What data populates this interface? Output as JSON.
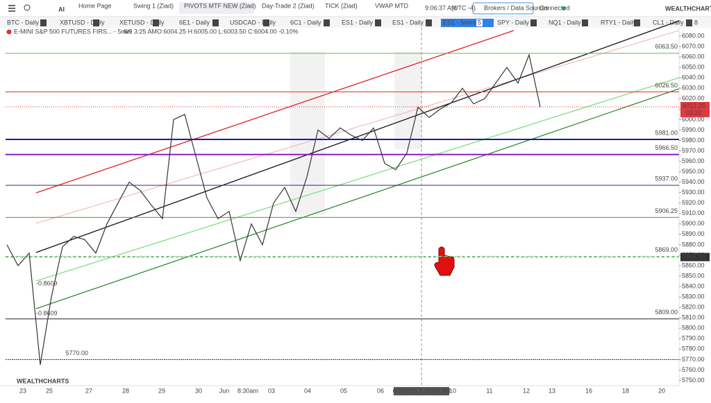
{
  "topbar": {
    "ai": "AI",
    "tabs": [
      "Home Page",
      "Swing 1 (Ziad)",
      "PIVOTS MTF NEW (Ziad)",
      "Day-Trade 2 (Ziad)",
      "TICK (Ziad)",
      "VWAP MTD"
    ],
    "time": "9:06:37 AM",
    "timezone": "(UTC -4)",
    "brokers_button": "Brokers / Data Sources",
    "status": "Connected",
    "logo": "WEALTHCHARTS"
  },
  "watchlist": {
    "items": [
      "BTC - Daily",
      "XBTUSD - Daily",
      "XETUSD - Daily",
      "6E1 - Daily",
      "USDCAD - Daily",
      "6C1 - Daily",
      "ES1 - Daily",
      "ES1 - Daily",
      "ES1 - 5mins",
      "SPY - Daily",
      "NQ1 - Daily",
      "RTY1 - Daily",
      "CL1 - Daily"
    ],
    "badge": "5",
    "count": "8"
  },
  "chart_data": {
    "type": "line",
    "title": "E-MINI S&P 500 FUTURES FIRS... - 5min",
    "bar_time": "6/9 3:25 AM",
    "ohlc": "O:6004.25 H:6005.00 L:6003.50 C:6004.00 -0.10%",
    "values": [
      5880,
      5860,
      5872,
      5765,
      5830,
      5878,
      5888,
      5885,
      5872,
      5900,
      5920,
      5940,
      5932,
      5918,
      5905,
      6000,
      6005,
      5965,
      5925,
      5905,
      5912,
      5865,
      5900,
      5880,
      5920,
      5935,
      5912,
      5945,
      5990,
      5982,
      5992,
      5985,
      5980,
      5992,
      5958,
      5952,
      5968,
      6012,
      6002,
      6010,
      6016,
      6030,
      6015,
      6020,
      6035,
      6050,
      6035,
      6062,
      6012
    ],
    "color": "#333333",
    "ylim": [
      5745,
      6088
    ],
    "yticks": [
      {
        "value": 5750,
        "label": "5750.00"
      },
      {
        "value": 5760,
        "label": "5760.00"
      },
      {
        "value": 5770,
        "label": "5770.00"
      },
      {
        "value": 5780,
        "label": "5780.00"
      },
      {
        "value": 5790,
        "label": "5790.00"
      },
      {
        "value": 5800,
        "label": "5800.00"
      },
      {
        "value": 5810,
        "label": "5810.00"
      },
      {
        "value": 5820,
        "label": "5820.00"
      },
      {
        "value": 5830,
        "label": "5830.00"
      },
      {
        "value": 5840,
        "label": "5840.00"
      },
      {
        "value": 5850,
        "label": "5850.00"
      },
      {
        "value": 5860,
        "label": "5860.00"
      },
      {
        "value": 5870,
        "label": "5870.00"
      },
      {
        "value": 5880,
        "label": "5880.00"
      },
      {
        "value": 5890,
        "label": "5890.00"
      },
      {
        "value": 5900,
        "label": "5900.00"
      },
      {
        "value": 5910,
        "label": "5910.00"
      },
      {
        "value": 5920,
        "label": "5920.00"
      },
      {
        "value": 5930,
        "label": "5930.00"
      },
      {
        "value": 5940,
        "label": "5940.00"
      },
      {
        "value": 5950,
        "label": "5950.00"
      },
      {
        "value": 5960,
        "label": "5960.00"
      },
      {
        "value": 5970,
        "label": "5970.00"
      },
      {
        "value": 5980,
        "label": "5980.00"
      },
      {
        "value": 5990,
        "label": "5990.00"
      },
      {
        "value": 6000,
        "label": "6000.00"
      },
      {
        "value": 6010,
        "label": "6010.00"
      },
      {
        "value": 6020,
        "label": "6020.00"
      },
      {
        "value": 6030,
        "label": "6030.00"
      },
      {
        "value": 6040,
        "label": "6040.00"
      },
      {
        "value": 6050,
        "label": "6050.00"
      },
      {
        "value": 6060,
        "label": "6060.00"
      },
      {
        "value": 6070,
        "label": "6070.00"
      },
      {
        "value": 6080,
        "label": "6080.00"
      }
    ],
    "levels": [
      {
        "value": 6063.5,
        "label": "6063.50",
        "color": "#5cb85c"
      },
      {
        "value": 6026.5,
        "label": "6026.50",
        "color": "#e03030"
      },
      {
        "value": 5981,
        "label": "5981.00",
        "color": "#1a1aa8"
      },
      {
        "value": 5966.5,
        "label": "5966.50",
        "color": "#8a1ec8"
      },
      {
        "value": 5937,
        "label": "5937.00",
        "color": "#2a2a8a"
      },
      {
        "value": 5906.25,
        "label": "5906.25",
        "color": "#6b8e23"
      },
      {
        "value": 5869,
        "label": "5869.00",
        "color": "#7ee07e"
      },
      {
        "value": 5809,
        "label": "5809.00",
        "color": "#222222"
      },
      {
        "value": 5770,
        "label": "5770.00",
        "color": "#222222"
      }
    ],
    "last_price": {
      "value": 6012.25,
      "label": "6012.25",
      "countdown": "03:22"
    },
    "crosshair": {
      "value": 5868.25,
      "label": "5868.25"
    },
    "annotations": [
      "-0.8609",
      "-0.8609"
    ],
    "x_labels": [
      "23",
      "25",
      "27",
      "28",
      "29",
      "30",
      "Jun",
      "8:30am",
      "03",
      "04",
      "05",
      "06",
      "6/9/2025 3:25:00 AM",
      "10",
      "11",
      "12",
      "13",
      "16",
      "18",
      "20"
    ],
    "watermark": "WEALTHCHARTS"
  }
}
